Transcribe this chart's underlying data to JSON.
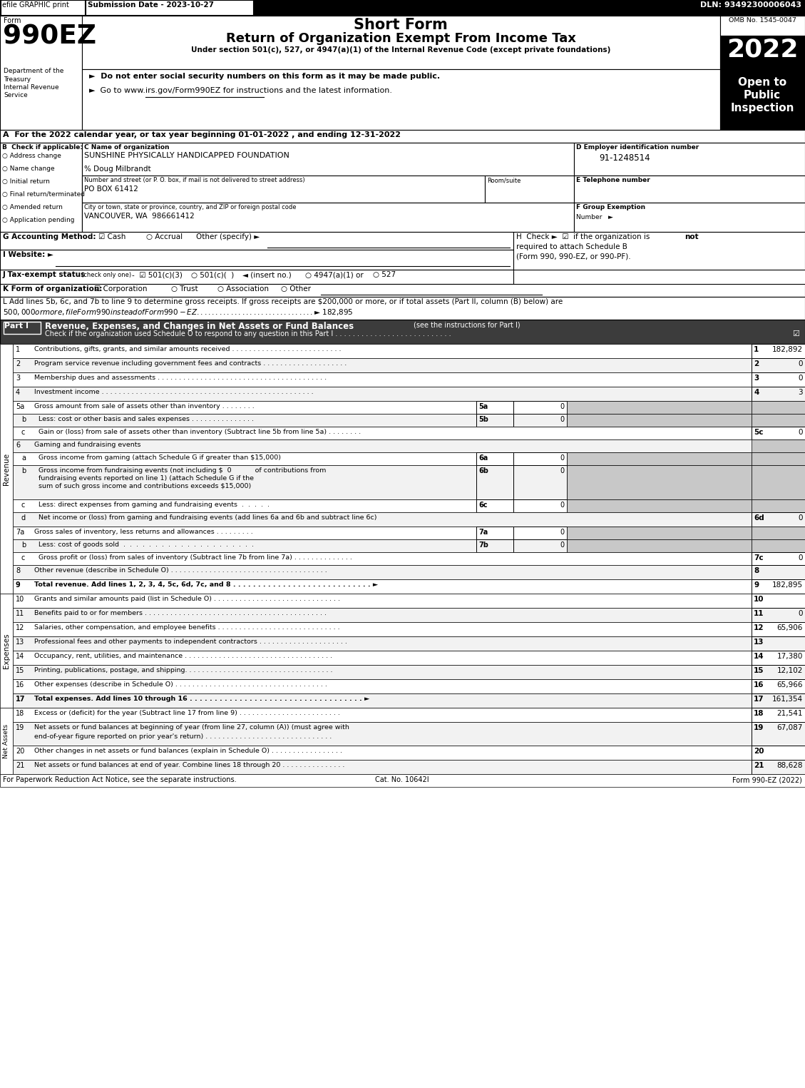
{
  "top_bar": {
    "efile": "efile GRAPHIC print",
    "submission": "Submission Date - 2023-10-27",
    "dln": "DLN: 93492300006043"
  },
  "header": {
    "form_label": "Form",
    "form_number": "990EZ",
    "short_form": "Short Form",
    "title": "Return of Organization Exempt From Income Tax",
    "subtitle": "Under section 501(c), 527, or 4947(a)(1) of the Internal Revenue Code (except private foundations)",
    "bullet1": "►  Do not enter social security numbers on this form as it may be made public.",
    "bullet2": "►  Go to www.irs.gov/Form990EZ for instructions and the latest information.",
    "dept1": "Department of the",
    "dept2": "Treasury",
    "dept3": "Internal Revenue",
    "dept4": "Service",
    "omb": "OMB No. 1545-0047",
    "year": "2022",
    "open_to": "Open to",
    "public": "Public",
    "inspection": "Inspection"
  },
  "section_a": "A  For the 2022 calendar year, or tax year beginning 01-01-2022 , and ending 12-31-2022",
  "org_info": {
    "checkboxes_b": [
      "Address change",
      "Name change",
      "Initial return",
      "Final return/terminated",
      "Amended return",
      "Application pending"
    ],
    "org_name": "SUNSHINE PHYSICALLY HANDICAPPED FOUNDATION",
    "care_of": "% Doug Milbrandt",
    "street_label": "Number and street (or P. O. box, if mail is not delivered to street address)",
    "room_label": "Room/suite",
    "street": "PO BOX 61412",
    "city_label": "City or town, state or province, country, and ZIP or foreign postal code",
    "city": "VANCOUVER, WA  986661412",
    "ein": "91-1248514"
  },
  "part1_rows": [
    {
      "num": "1",
      "label": "Contributions, gifts, grants, and similar amounts received . . . . . . . . . . . . . . . . . . . . . . . . . .",
      "line": "1",
      "value": "182,892",
      "sub": false,
      "header": false,
      "bold": false,
      "multiline": false,
      "indent": 0
    },
    {
      "num": "2",
      "label": "Program service revenue including government fees and contracts . . . . . . . . . . . . . . . . . . . .",
      "line": "2",
      "value": "0",
      "sub": false,
      "header": false,
      "bold": false,
      "multiline": false,
      "indent": 0
    },
    {
      "num": "3",
      "label": "Membership dues and assessments . . . . . . . . . . . . . . . . . . . . . . . . . . . . . . . . . . . . . . . .",
      "line": "3",
      "value": "0",
      "sub": false,
      "header": false,
      "bold": false,
      "multiline": false,
      "indent": 0
    },
    {
      "num": "4",
      "label": "Investment income . . . . . . . . . . . . . . . . . . . . . . . . . . . . . . . . . . . . . . . . . . . . . . . . . .",
      "line": "4",
      "value": "3",
      "sub": false,
      "header": false,
      "bold": false,
      "multiline": false,
      "indent": 0
    },
    {
      "num": "5a",
      "label": "Gross amount from sale of assets other than inventory . . . . . . . .",
      "line": "5a",
      "value": "0",
      "sub": true,
      "header": false,
      "bold": false,
      "multiline": false,
      "indent": 0
    },
    {
      "num": "b",
      "label": "Less: cost or other basis and sales expenses . . . . . . . . . . . . . . .",
      "line": "5b",
      "value": "0",
      "sub": true,
      "header": false,
      "bold": false,
      "multiline": false,
      "indent": 1
    },
    {
      "num": "c",
      "label": "Gain or (loss) from sale of assets other than inventory (Subtract line 5b from line 5a) . . . . . . . .",
      "line": "5c",
      "value": "0",
      "sub": false,
      "header": false,
      "bold": false,
      "multiline": false,
      "indent": 1
    },
    {
      "num": "6",
      "label": "Gaming and fundraising events",
      "line": "",
      "value": "",
      "sub": false,
      "header": true,
      "bold": false,
      "multiline": false,
      "indent": 0
    },
    {
      "num": "a",
      "label": "Gross income from gaming (attach Schedule G if greater than $15,000)",
      "line": "6a",
      "value": "0",
      "sub": true,
      "header": false,
      "bold": false,
      "multiline": false,
      "indent": 1
    },
    {
      "num": "b",
      "label": "Gross income from fundraising events (not including $  0           of contributions from\nfundraising events reported on line 1) (attach Schedule G if the\nsum of such gross income and contributions exceeds $15,000)",
      "line": "6b",
      "value": "0",
      "sub": true,
      "header": false,
      "bold": false,
      "multiline": true,
      "indent": 1
    },
    {
      "num": "c",
      "label": "Less: direct expenses from gaming and fundraising events  .  .  .  .  .",
      "line": "6c",
      "value": "0",
      "sub": true,
      "header": false,
      "bold": false,
      "multiline": false,
      "indent": 1
    },
    {
      "num": "d",
      "label": "Net income or (loss) from gaming and fundraising events (add lines 6a and 6b and subtract line 6c)",
      "line": "6d",
      "value": "0",
      "sub": false,
      "header": false,
      "bold": false,
      "multiline": false,
      "indent": 1
    },
    {
      "num": "7a",
      "label": "Gross sales of inventory, less returns and allowances . . . . . . . . .",
      "line": "7a",
      "value": "0",
      "sub": true,
      "header": false,
      "bold": false,
      "multiline": false,
      "indent": 0
    },
    {
      "num": "b",
      "label": "Less: cost of goods sold  .  .  .  .  .  .  .  .  .  .  .  .  .  .  .  .  .  .  .  .  .",
      "line": "7b",
      "value": "0",
      "sub": true,
      "header": false,
      "bold": false,
      "multiline": false,
      "indent": 1
    },
    {
      "num": "c",
      "label": "Gross profit or (loss) from sales of inventory (Subtract line 7b from line 7a) . . . . . . . . . . . . . .",
      "line": "7c",
      "value": "0",
      "sub": false,
      "header": false,
      "bold": false,
      "multiline": false,
      "indent": 1
    },
    {
      "num": "8",
      "label": "Other revenue (describe in Schedule O) . . . . . . . . . . . . . . . . . . . . . . . . . . . . . . . . . . . . .",
      "line": "8",
      "value": "",
      "sub": false,
      "header": false,
      "bold": false,
      "multiline": false,
      "indent": 0
    },
    {
      "num": "9",
      "label": "Total revenue. Add lines 1, 2, 3, 4, 5c, 6d, 7c, and 8 . . . . . . . . . . . . . . . . . . . . . . . . . . . . ►",
      "line": "9",
      "value": "182,895",
      "sub": false,
      "header": false,
      "bold": true,
      "multiline": false,
      "indent": 0
    }
  ],
  "part1_row_heights": [
    20,
    20,
    20,
    20,
    18,
    18,
    18,
    18,
    18,
    48,
    18,
    18,
    18,
    18,
    18,
    18,
    20
  ],
  "expense_rows": [
    {
      "num": "10",
      "label": "Grants and similar amounts paid (list in Schedule O) . . . . . . . . . . . . . . . . . . . . . . . . . . . . . .",
      "line": "10",
      "value": "",
      "bold": false
    },
    {
      "num": "11",
      "label": "Benefits paid to or for members . . . . . . . . . . . . . . . . . . . . . . . . . . . . . . . . . . . . . . . . . . .",
      "line": "11",
      "value": "0",
      "bold": false
    },
    {
      "num": "12",
      "label": "Salaries, other compensation, and employee benefits . . . . . . . . . . . . . . . . . . . . . . . . . . . . .",
      "line": "12",
      "value": "65,906",
      "bold": false
    },
    {
      "num": "13",
      "label": "Professional fees and other payments to independent contractors . . . . . . . . . . . . . . . . . . . . .",
      "line": "13",
      "value": "",
      "bold": false
    },
    {
      "num": "14",
      "label": "Occupancy, rent, utilities, and maintenance . . . . . . . . . . . . . . . . . . . . . . . . . . . . . . . . . . .",
      "line": "14",
      "value": "17,380",
      "bold": false
    },
    {
      "num": "15",
      "label": "Printing, publications, postage, and shipping. . . . . . . . . . . . . . . . . . . . . . . . . . . . . . . . . . .",
      "line": "15",
      "value": "12,102",
      "bold": false
    },
    {
      "num": "16",
      "label": "Other expenses (describe in Schedule O) . . . . . . . . . . . . . . . . . . . . . . . . . . . . . . . . . . . .",
      "line": "16",
      "value": "65,966",
      "bold": false
    },
    {
      "num": "17",
      "label": "Total expenses. Add lines 10 through 16 . . . . . . . . . . . . . . . . . . . . . . . . . . . . . . . . . . . ►",
      "line": "17",
      "value": "161,354",
      "bold": true
    }
  ],
  "netasset_rows": [
    {
      "num": "18",
      "label": "Excess or (deficit) for the year (Subtract line 17 from line 9) . . . . . . . . . . . . . . . . . . . . . . . .",
      "line": "18",
      "value": "21,541",
      "multiline": false
    },
    {
      "num": "19",
      "label": "Net assets or fund balances at beginning of year (from line 27, column (A)) (must agree with\nend-of-year figure reported on prior year's return) . . . . . . . . . . . . . . . . . . . . . . . . . . . . . .",
      "line": "19",
      "value": "67,087",
      "multiline": true
    },
    {
      "num": "20",
      "label": "Other changes in net assets or fund balances (explain in Schedule O) . . . . . . . . . . . . . . . . .",
      "line": "20",
      "value": "",
      "multiline": false
    },
    {
      "num": "21",
      "label": "Net assets or fund balances at end of year. Combine lines 18 through 20 . . . . . . . . . . . . . . .",
      "line": "21",
      "value": "88,628",
      "multiline": false
    }
  ],
  "footer": {
    "left": "For Paperwork Reduction Act Notice, see the separate instructions.",
    "cat": "Cat. No. 10642I",
    "right": "Form 990-EZ (2022)"
  }
}
